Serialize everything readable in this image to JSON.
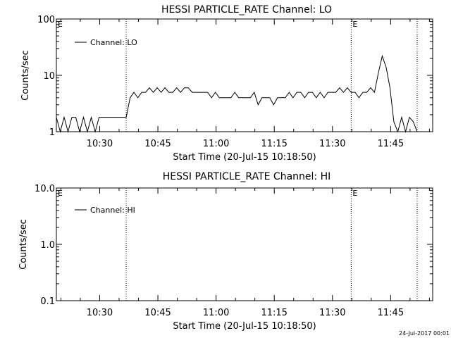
{
  "chart_data": [
    {
      "type": "line",
      "title": "HESSI PARTICLE_RATE Channel: LO",
      "xlabel": "Start Time (20-Jul-15 10:18:50)",
      "ylabel": "Counts/sec",
      "yscale": "log",
      "ylim": [
        1,
        100
      ],
      "xlim": [
        "10:18:50",
        "11:55:50"
      ],
      "x_ticks": [
        "10:30",
        "10:45",
        "11:00",
        "11:15",
        "11:30",
        "11:45"
      ],
      "y_ticks": [
        "1",
        "10",
        "100"
      ],
      "grid": false,
      "legend": "top-left",
      "vlines": [
        "10:36:50",
        "11:34:50",
        "11:51:50"
      ],
      "markers": [
        {
          "label": "E",
          "at": "10:18:50"
        },
        {
          "label": "E",
          "at": "11:34:50"
        }
      ],
      "series": [
        {
          "name": "Channel: LO",
          "x": [
            "10:18:50",
            "10:19:50",
            "10:20:50",
            "10:21:50",
            "10:22:50",
            "10:23:50",
            "10:24:50",
            "10:25:50",
            "10:26:50",
            "10:27:50",
            "10:28:50",
            "10:29:50",
            "10:30:50",
            "10:31:50",
            "10:32:50",
            "10:33:50",
            "10:34:50",
            "10:35:50",
            "10:36:50",
            "10:37:50",
            "10:38:50",
            "10:39:50",
            "10:40:50",
            "10:41:50",
            "10:42:50",
            "10:43:50",
            "10:44:50",
            "10:45:50",
            "10:46:50",
            "10:47:50",
            "10:48:50",
            "10:49:50",
            "10:50:50",
            "10:51:50",
            "10:52:50",
            "10:53:50",
            "10:54:50",
            "10:55:50",
            "10:56:50",
            "10:57:50",
            "10:58:50",
            "10:59:50",
            "11:00:50",
            "11:01:50",
            "11:02:50",
            "11:03:50",
            "11:04:50",
            "11:05:50",
            "11:06:50",
            "11:07:50",
            "11:08:50",
            "11:09:50",
            "11:10:50",
            "11:11:50",
            "11:12:50",
            "11:13:50",
            "11:14:50",
            "11:15:50",
            "11:16:50",
            "11:17:50",
            "11:18:50",
            "11:19:50",
            "11:20:50",
            "11:21:50",
            "11:22:50",
            "11:23:50",
            "11:24:50",
            "11:25:50",
            "11:26:50",
            "11:27:50",
            "11:28:50",
            "11:29:50",
            "11:30:50",
            "11:31:50",
            "11:32:50",
            "11:33:50",
            "11:34:50",
            "11:35:50",
            "11:36:50",
            "11:37:50",
            "11:38:50",
            "11:39:50",
            "11:40:50",
            "11:41:50",
            "11:42:50",
            "11:43:50",
            "11:44:50",
            "11:45:50",
            "11:46:50",
            "11:47:50",
            "11:48:50",
            "11:49:50",
            "11:50:50",
            "11:51:50"
          ],
          "y": [
            1.8,
            1,
            1.8,
            1,
            1.8,
            1.8,
            1,
            1.8,
            1,
            1.8,
            1,
            1.8,
            1.8,
            1.8,
            1.8,
            1.8,
            1.8,
            1.8,
            1.8,
            4,
            5,
            4,
            5,
            5,
            6,
            5,
            6,
            5,
            6,
            5,
            5,
            6,
            5,
            6,
            6,
            5,
            5,
            5,
            5,
            5,
            4,
            5,
            4,
            4,
            4,
            4,
            5,
            4,
            4,
            4,
            4,
            5,
            3,
            4,
            4,
            4,
            3,
            4,
            4,
            4,
            5,
            4,
            5,
            5,
            4,
            5,
            5,
            4,
            5,
            4,
            5,
            5,
            5,
            6,
            5,
            6,
            5,
            5,
            4,
            5,
            5,
            6,
            5,
            11,
            22,
            14,
            6,
            1.5,
            1,
            1.8,
            1,
            1.8,
            1.5,
            1
          ]
        }
      ]
    },
    {
      "type": "line",
      "title": "HESSI PARTICLE_RATE Channel: HI",
      "xlabel": "Start Time (20-Jul-15 10:18:50)",
      "ylabel": "Counts/sec",
      "yscale": "log",
      "ylim": [
        0.1,
        10
      ],
      "xlim": [
        "10:18:50",
        "11:55:50"
      ],
      "x_ticks": [
        "10:30",
        "10:45",
        "11:00",
        "11:15",
        "11:30",
        "11:45"
      ],
      "y_ticks": [
        "0.1",
        "1.0",
        "10.0"
      ],
      "grid": false,
      "legend": "top-left",
      "vlines": [
        "10:36:50",
        "11:34:50",
        "11:51:50"
      ],
      "markers": [
        {
          "label": "E",
          "at": "10:18:50"
        },
        {
          "label": "E",
          "at": "11:34:50"
        }
      ],
      "series": [
        {
          "name": "Channel: HI",
          "x": [],
          "y": []
        }
      ]
    }
  ],
  "footer": {
    "datestamp": "24-Jul-2017 00:01"
  }
}
